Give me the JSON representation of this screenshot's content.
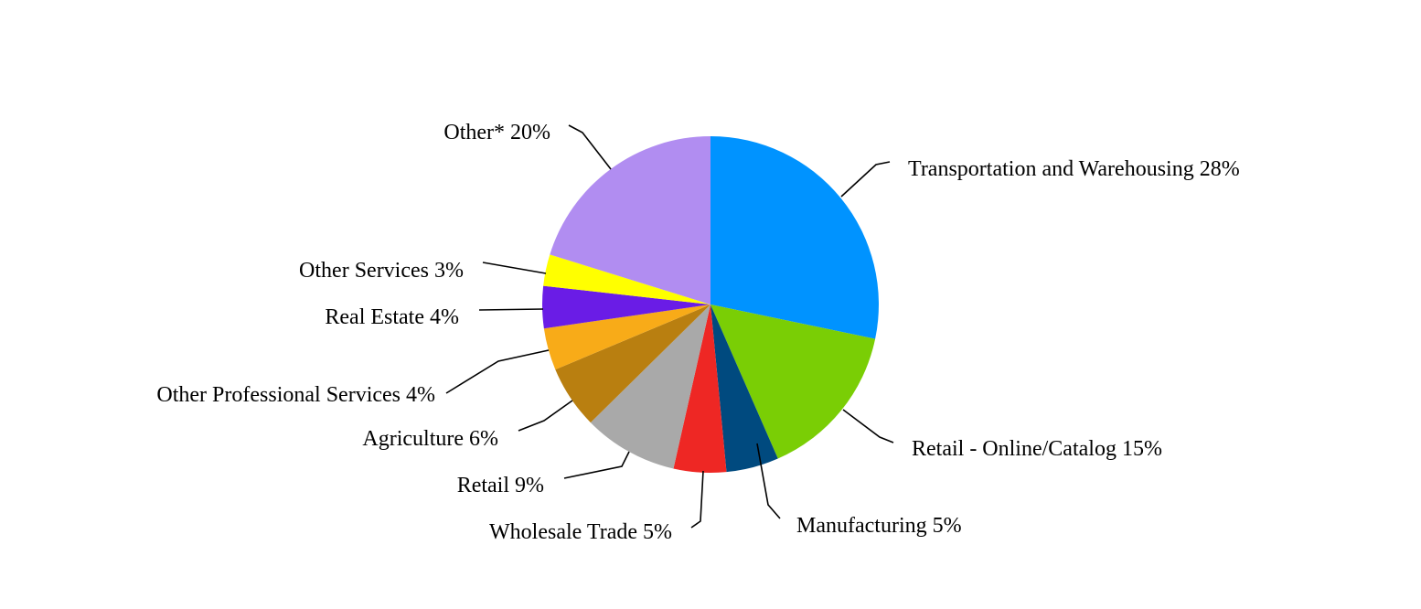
{
  "chart_data": {
    "type": "pie",
    "start_angle_deg": 0,
    "direction": "clockwise",
    "slices": [
      {
        "label": "Transportation and Warehousing 28%",
        "value": 28,
        "color": "#0093FF"
      },
      {
        "label": "Retail - Online/Catalog 15%",
        "value": 15,
        "color": "#7ACE05"
      },
      {
        "label": "Manufacturing 5%",
        "value": 5,
        "color": "#004A7F"
      },
      {
        "label": "Wholesale Trade 5%",
        "value": 5,
        "color": "#EE2724"
      },
      {
        "label": "Retail 9%",
        "value": 9,
        "color": "#A9A9A9"
      },
      {
        "label": "Agriculture 6%",
        "value": 6,
        "color": "#B97F10"
      },
      {
        "label": "Other Professional Services 4%",
        "value": 4,
        "color": "#F8AB18"
      },
      {
        "label": "Real Estate 4%",
        "value": 4,
        "color": "#6A1CE6"
      },
      {
        "label": "Other Services 3%",
        "value": 3,
        "color": "#FFFF00"
      },
      {
        "label": "Other* 20%",
        "value": 20,
        "color": "#B18DF1"
      }
    ]
  }
}
